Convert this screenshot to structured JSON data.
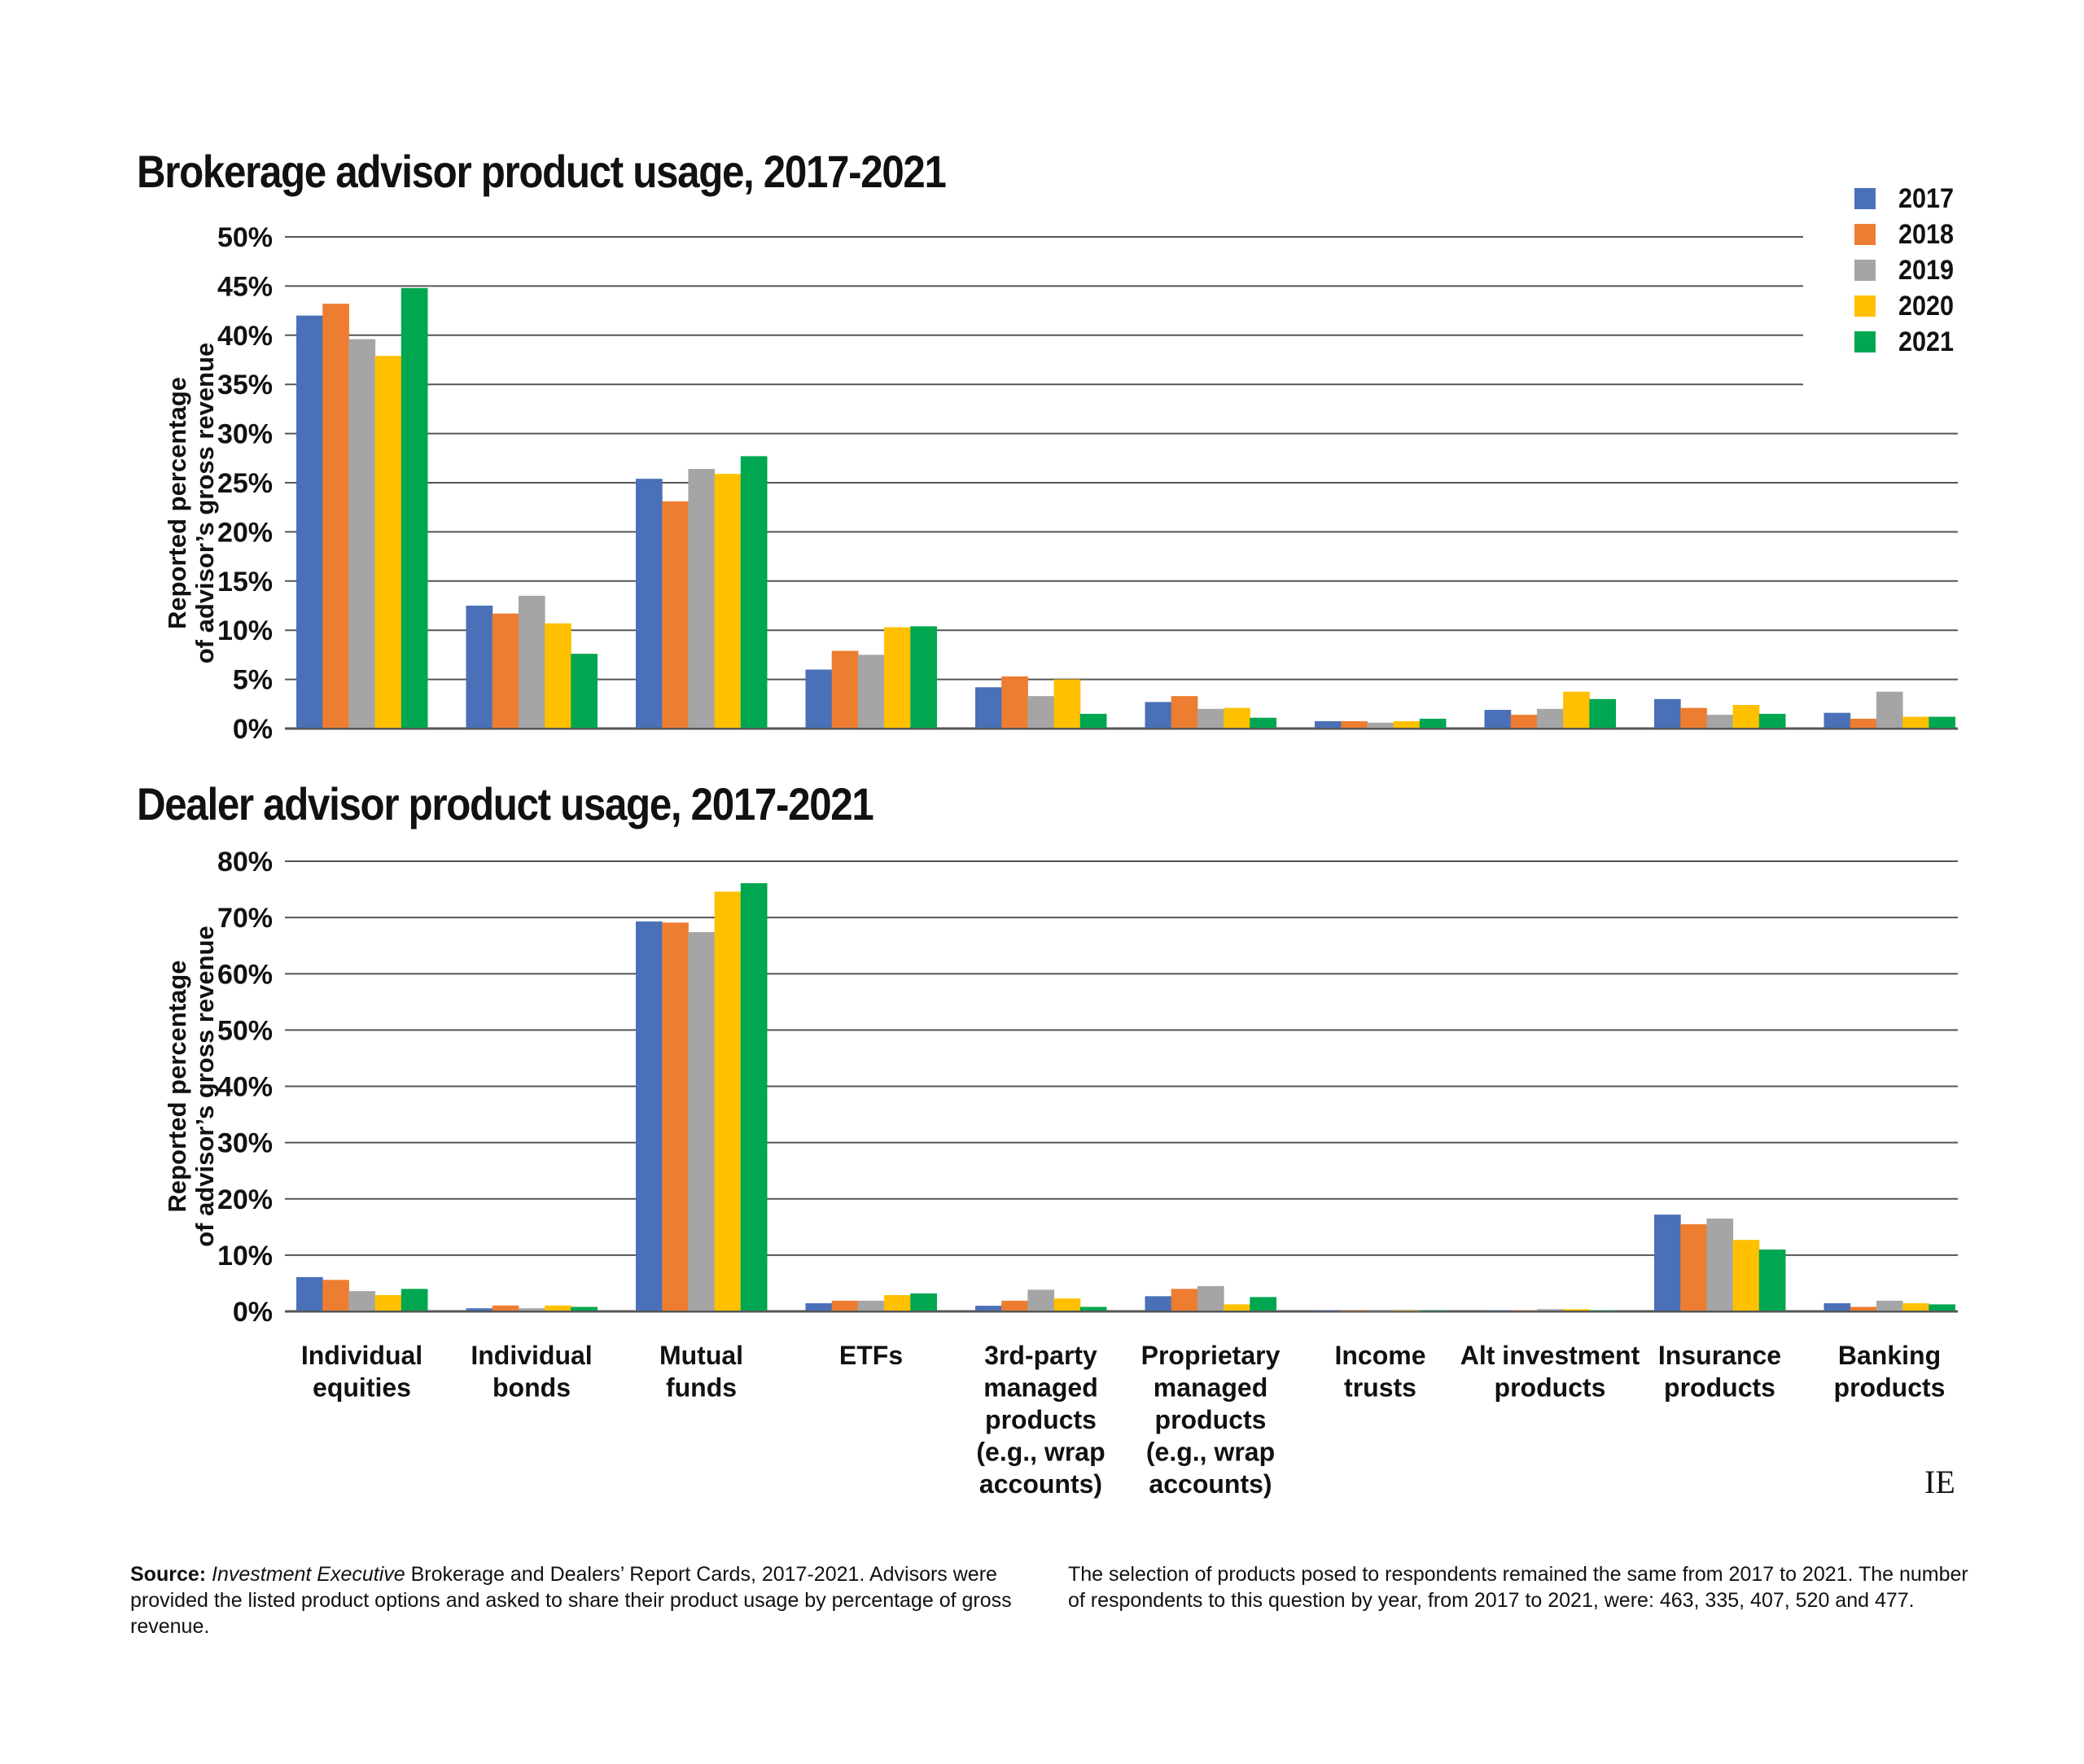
{
  "chart_data": [
    {
      "type": "bar",
      "title": "Brokerage advisor product usage, 2017-2021",
      "xlabel": "",
      "ylabel": "Reported percentage of advisor's gross revenue",
      "ylabel_lines": [
        "Reported percentage",
        "of advisor’s gross revenue"
      ],
      "ylim": [
        0,
        50
      ],
      "yticks": [
        0,
        5,
        10,
        15,
        20,
        25,
        30,
        35,
        40,
        45,
        50
      ],
      "ytick_labels": [
        "0%",
        "5%",
        "10%",
        "15%",
        "20%",
        "25%",
        "30%",
        "35%",
        "40%",
        "45%",
        "50%"
      ],
      "grid": true,
      "legend_position": "top-right",
      "categories": [
        "Individual equities",
        "Individual bonds",
        "Mutual funds",
        "ETFs",
        "3rd-party managed products (e.g., wrap accounts)",
        "Proprietary managed products (e.g., wrap accounts)",
        "Income trusts",
        "Alt investment products",
        "Insurance products",
        "Banking products"
      ],
      "series": [
        {
          "name": "2017",
          "values": [
            42.0,
            12.5,
            25.4,
            6.0,
            4.2,
            2.7,
            0.75,
            1.9,
            3.0,
            1.6
          ]
        },
        {
          "name": "2018",
          "values": [
            43.2,
            11.7,
            23.1,
            7.9,
            5.3,
            3.3,
            0.75,
            1.4,
            2.1,
            1.0
          ]
        },
        {
          "name": "2019",
          "values": [
            39.6,
            13.5,
            26.4,
            7.5,
            3.3,
            2.0,
            0.6,
            2.0,
            1.4,
            3.75
          ]
        },
        {
          "name": "2020",
          "values": [
            37.9,
            10.7,
            25.9,
            10.3,
            5.0,
            2.1,
            0.75,
            3.75,
            2.4,
            1.2
          ]
        },
        {
          "name": "2021",
          "values": [
            44.8,
            7.6,
            27.7,
            10.4,
            1.5,
            1.1,
            1.0,
            3.0,
            1.5,
            1.2
          ]
        }
      ]
    },
    {
      "type": "bar",
      "title": "Dealer advisor product usage, 2017-2021",
      "xlabel": "",
      "ylabel": "Reported percentage of advisor's gross revenue",
      "ylabel_lines": [
        "Reported percentage",
        "of advisor’s gross revenue"
      ],
      "ylim": [
        0,
        80
      ],
      "yticks": [
        0,
        10,
        20,
        30,
        40,
        50,
        60,
        70,
        80
      ],
      "ytick_labels": [
        "0%",
        "10%",
        "20%",
        "30%",
        "40%",
        "50%",
        "60%",
        "70%",
        "80%"
      ],
      "grid": true,
      "categories": [
        "Individual equities",
        "Individual bonds",
        "Mutual funds",
        "ETFs",
        "3rd-party managed products (e.g., wrap accounts)",
        "Proprietary managed products (e.g., wrap accounts)",
        "Income trusts",
        "Alt investment products",
        "Insurance products",
        "Banking products"
      ],
      "category_label_lines": [
        [
          "Individual",
          "equities"
        ],
        [
          "Individual",
          "bonds"
        ],
        [
          "Mutual",
          "funds"
        ],
        [
          "ETFs"
        ],
        [
          "3rd-party",
          "managed",
          "products",
          "(e.g., wrap",
          "accounts)"
        ],
        [
          "Proprietary",
          "managed",
          "products",
          "(e.g., wrap",
          "accounts)"
        ],
        [
          "Income",
          "trusts"
        ],
        [
          "Alt investment",
          "products"
        ],
        [
          "Insurance",
          "products"
        ],
        [
          "Banking",
          "products"
        ]
      ],
      "series": [
        {
          "name": "2017",
          "values": [
            6.1,
            0.55,
            69.3,
            1.45,
            1.0,
            2.7,
            0.15,
            0.2,
            17.2,
            1.45
          ]
        },
        {
          "name": "2018",
          "values": [
            5.6,
            1.05,
            69.1,
            1.9,
            1.9,
            4.0,
            0.15,
            0.2,
            15.5,
            0.8
          ]
        },
        {
          "name": "2019",
          "values": [
            3.6,
            0.55,
            67.4,
            1.9,
            3.85,
            4.5,
            0.1,
            0.4,
            16.5,
            1.9
          ]
        },
        {
          "name": "2020",
          "values": [
            2.9,
            1.05,
            74.6,
            2.9,
            2.3,
            1.25,
            0.15,
            0.4,
            12.7,
            1.45
          ]
        },
        {
          "name": "2021",
          "values": [
            4.0,
            0.8,
            76.1,
            3.2,
            0.8,
            2.55,
            0.05,
            0.2,
            11.0,
            1.25
          ]
        }
      ]
    }
  ],
  "legend": {
    "items": [
      {
        "label": "2017",
        "color": "#4a70b8"
      },
      {
        "label": "2018",
        "color": "#ed7d31"
      },
      {
        "label": "2019",
        "color": "#a5a5a5"
      },
      {
        "label": "2020",
        "color": "#ffc000"
      },
      {
        "label": "2021",
        "color": "#00a650"
      }
    ]
  },
  "colors": {
    "gridline": "#555555",
    "axis": "#555555",
    "text": "#111111"
  },
  "footer": {
    "source_label": "Source:",
    "source_publication": "Investment Executive",
    "source_rest": " Brokerage and Dealers’ Report Cards, 2017-2021.",
    "source_note": "Advisors were provided the listed product options and asked to share their product usage by percentage of gross revenue.",
    "note_right": "The selection of products posed to respondents remained the same from 2017 to 2021. The number of respondents to this question by year, from 2017 to 2021, were: 463, 335, 407, 520 and 477."
  },
  "logo": "IE"
}
